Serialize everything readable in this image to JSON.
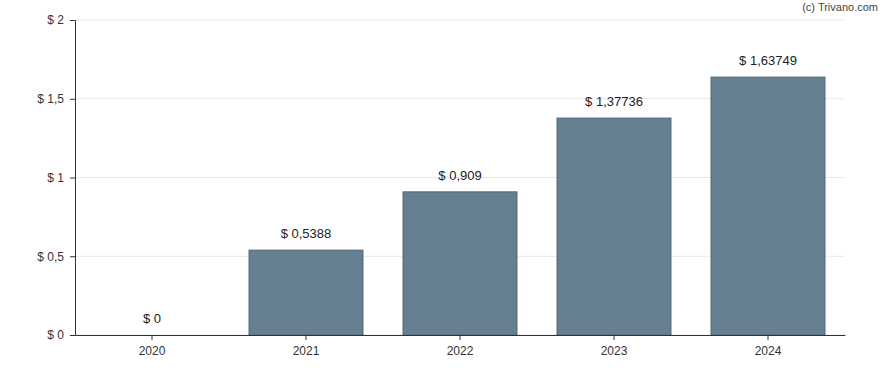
{
  "chart_data": {
    "type": "bar",
    "annotation": "(c) Trivano.com",
    "categories": [
      "2020",
      "2021",
      "2022",
      "2023",
      "2024"
    ],
    "values": [
      0,
      0.5388,
      0.909,
      1.37736,
      1.63749
    ],
    "value_labels": [
      "$ 0",
      "$ 0,5388",
      "$ 0,909",
      "$ 1,37736",
      "$ 1,63749"
    ],
    "color": "#667f91",
    "ylim": [
      0,
      2
    ],
    "yticks": [
      {
        "value": 0,
        "label": "$ 0"
      },
      {
        "value": 0.5,
        "label": "$ 0,5"
      },
      {
        "value": 1,
        "label": "$ 1"
      },
      {
        "value": 1.5,
        "label": "$ 1,5"
      },
      {
        "value": 2,
        "label": "$ 2"
      }
    ],
    "grid": true,
    "data_labels": true
  }
}
